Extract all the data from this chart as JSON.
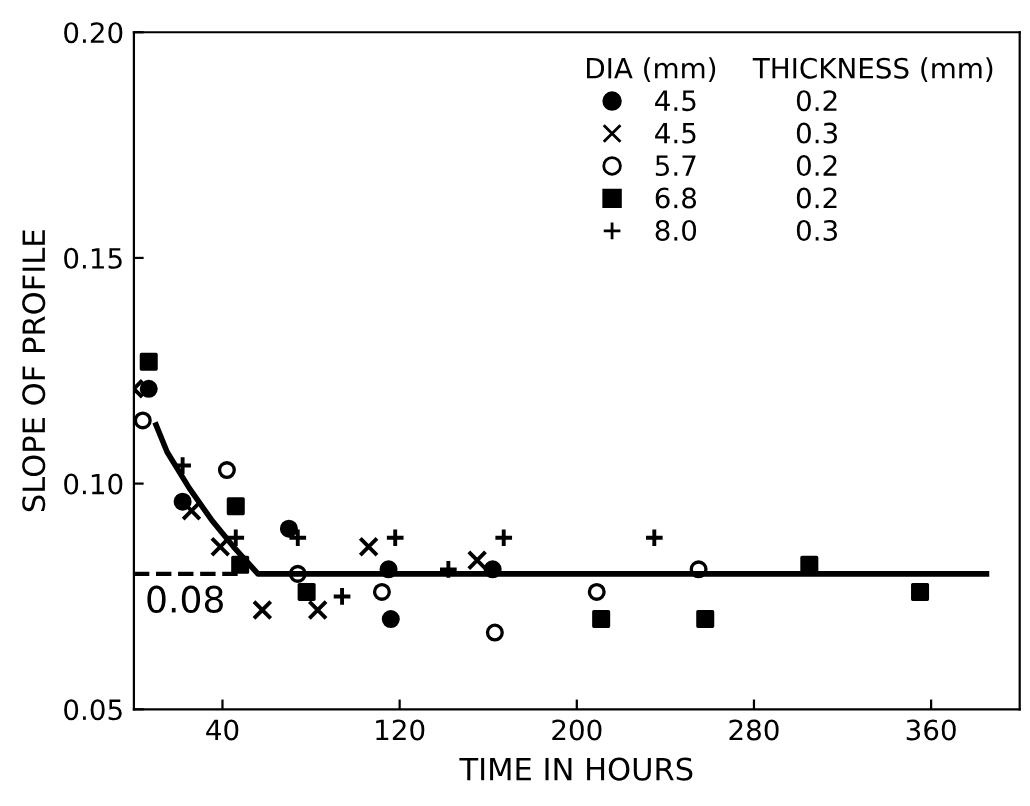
{
  "chart_data": {
    "type": "scatter",
    "xlabel": "TIME IN HOURS",
    "ylabel": "SLOPE OF PROFILE",
    "legend_title": "DIA (mm)    THICKNESS (mm)",
    "xlim": [
      0,
      400
    ],
    "xticks": [
      40,
      120,
      200,
      280,
      360
    ],
    "ylim": [
      0.05,
      0.2
    ],
    "yticks": [
      {
        "value": 0.05,
        "label": "0.05"
      },
      {
        "value": 0.1,
        "label": "0.10"
      },
      {
        "value": 0.15,
        "label": "0.15"
      },
      {
        "value": 0.2,
        "label": "0.20"
      }
    ],
    "grid": false,
    "legend": "top right",
    "series": [
      {
        "name": "4.5           0.2",
        "color": "#000000",
        "marker": "circle",
        "x": [
          6.7,
          22,
          70,
          116,
          115,
          162
        ],
        "values": [
          0.121,
          0.096,
          0.09,
          0.07,
          0.081,
          0.081
        ]
      },
      {
        "name": "4.5           0.3",
        "color": "#000000",
        "marker": "cross",
        "x": [
          0,
          26,
          39,
          58,
          83,
          106,
          155
        ],
        "values": [
          0.121,
          0.094,
          0.086,
          0.072,
          0.072,
          0.086,
          0.083
        ]
      },
      {
        "name": "5.7           0.2",
        "color": "#000000",
        "marker": "open circle",
        "x": [
          4,
          42,
          74,
          112,
          163,
          209,
          255
        ],
        "values": [
          0.114,
          0.103,
          0.08,
          0.076,
          0.067,
          0.076,
          0.081
        ]
      },
      {
        "name": "6.8           0.2",
        "color": "#000000",
        "marker": "square",
        "x": [
          6.7,
          46,
          48,
          78,
          211,
          258,
          305,
          355
        ],
        "values": [
          0.127,
          0.095,
          0.082,
          0.076,
          0.07,
          0.07,
          0.082,
          0.076
        ]
      },
      {
        "name": "8.0           0.3",
        "color": "#000000",
        "marker": "plus",
        "x": [
          22,
          46,
          74,
          94,
          118,
          142,
          167,
          235
        ],
        "values": [
          0.104,
          0.088,
          0.088,
          0.075,
          0.088,
          0.081,
          0.088,
          0.088
        ]
      },
      {
        "type": "line",
        "color": "#000000",
        "marker": "none",
        "line_style": "solid",
        "x": [
          10,
          15,
          25,
          35,
          45,
          56,
          385
        ],
        "values": [
          0.113,
          0.107,
          0.099,
          0.092,
          0.086,
          0.08,
          0.08
        ]
      }
    ],
    "ref_lines": [
      {
        "axis": "y",
        "value": 0.08,
        "label": "0.08",
        "color": "#000000",
        "line_style": "dashed"
      }
    ]
  }
}
